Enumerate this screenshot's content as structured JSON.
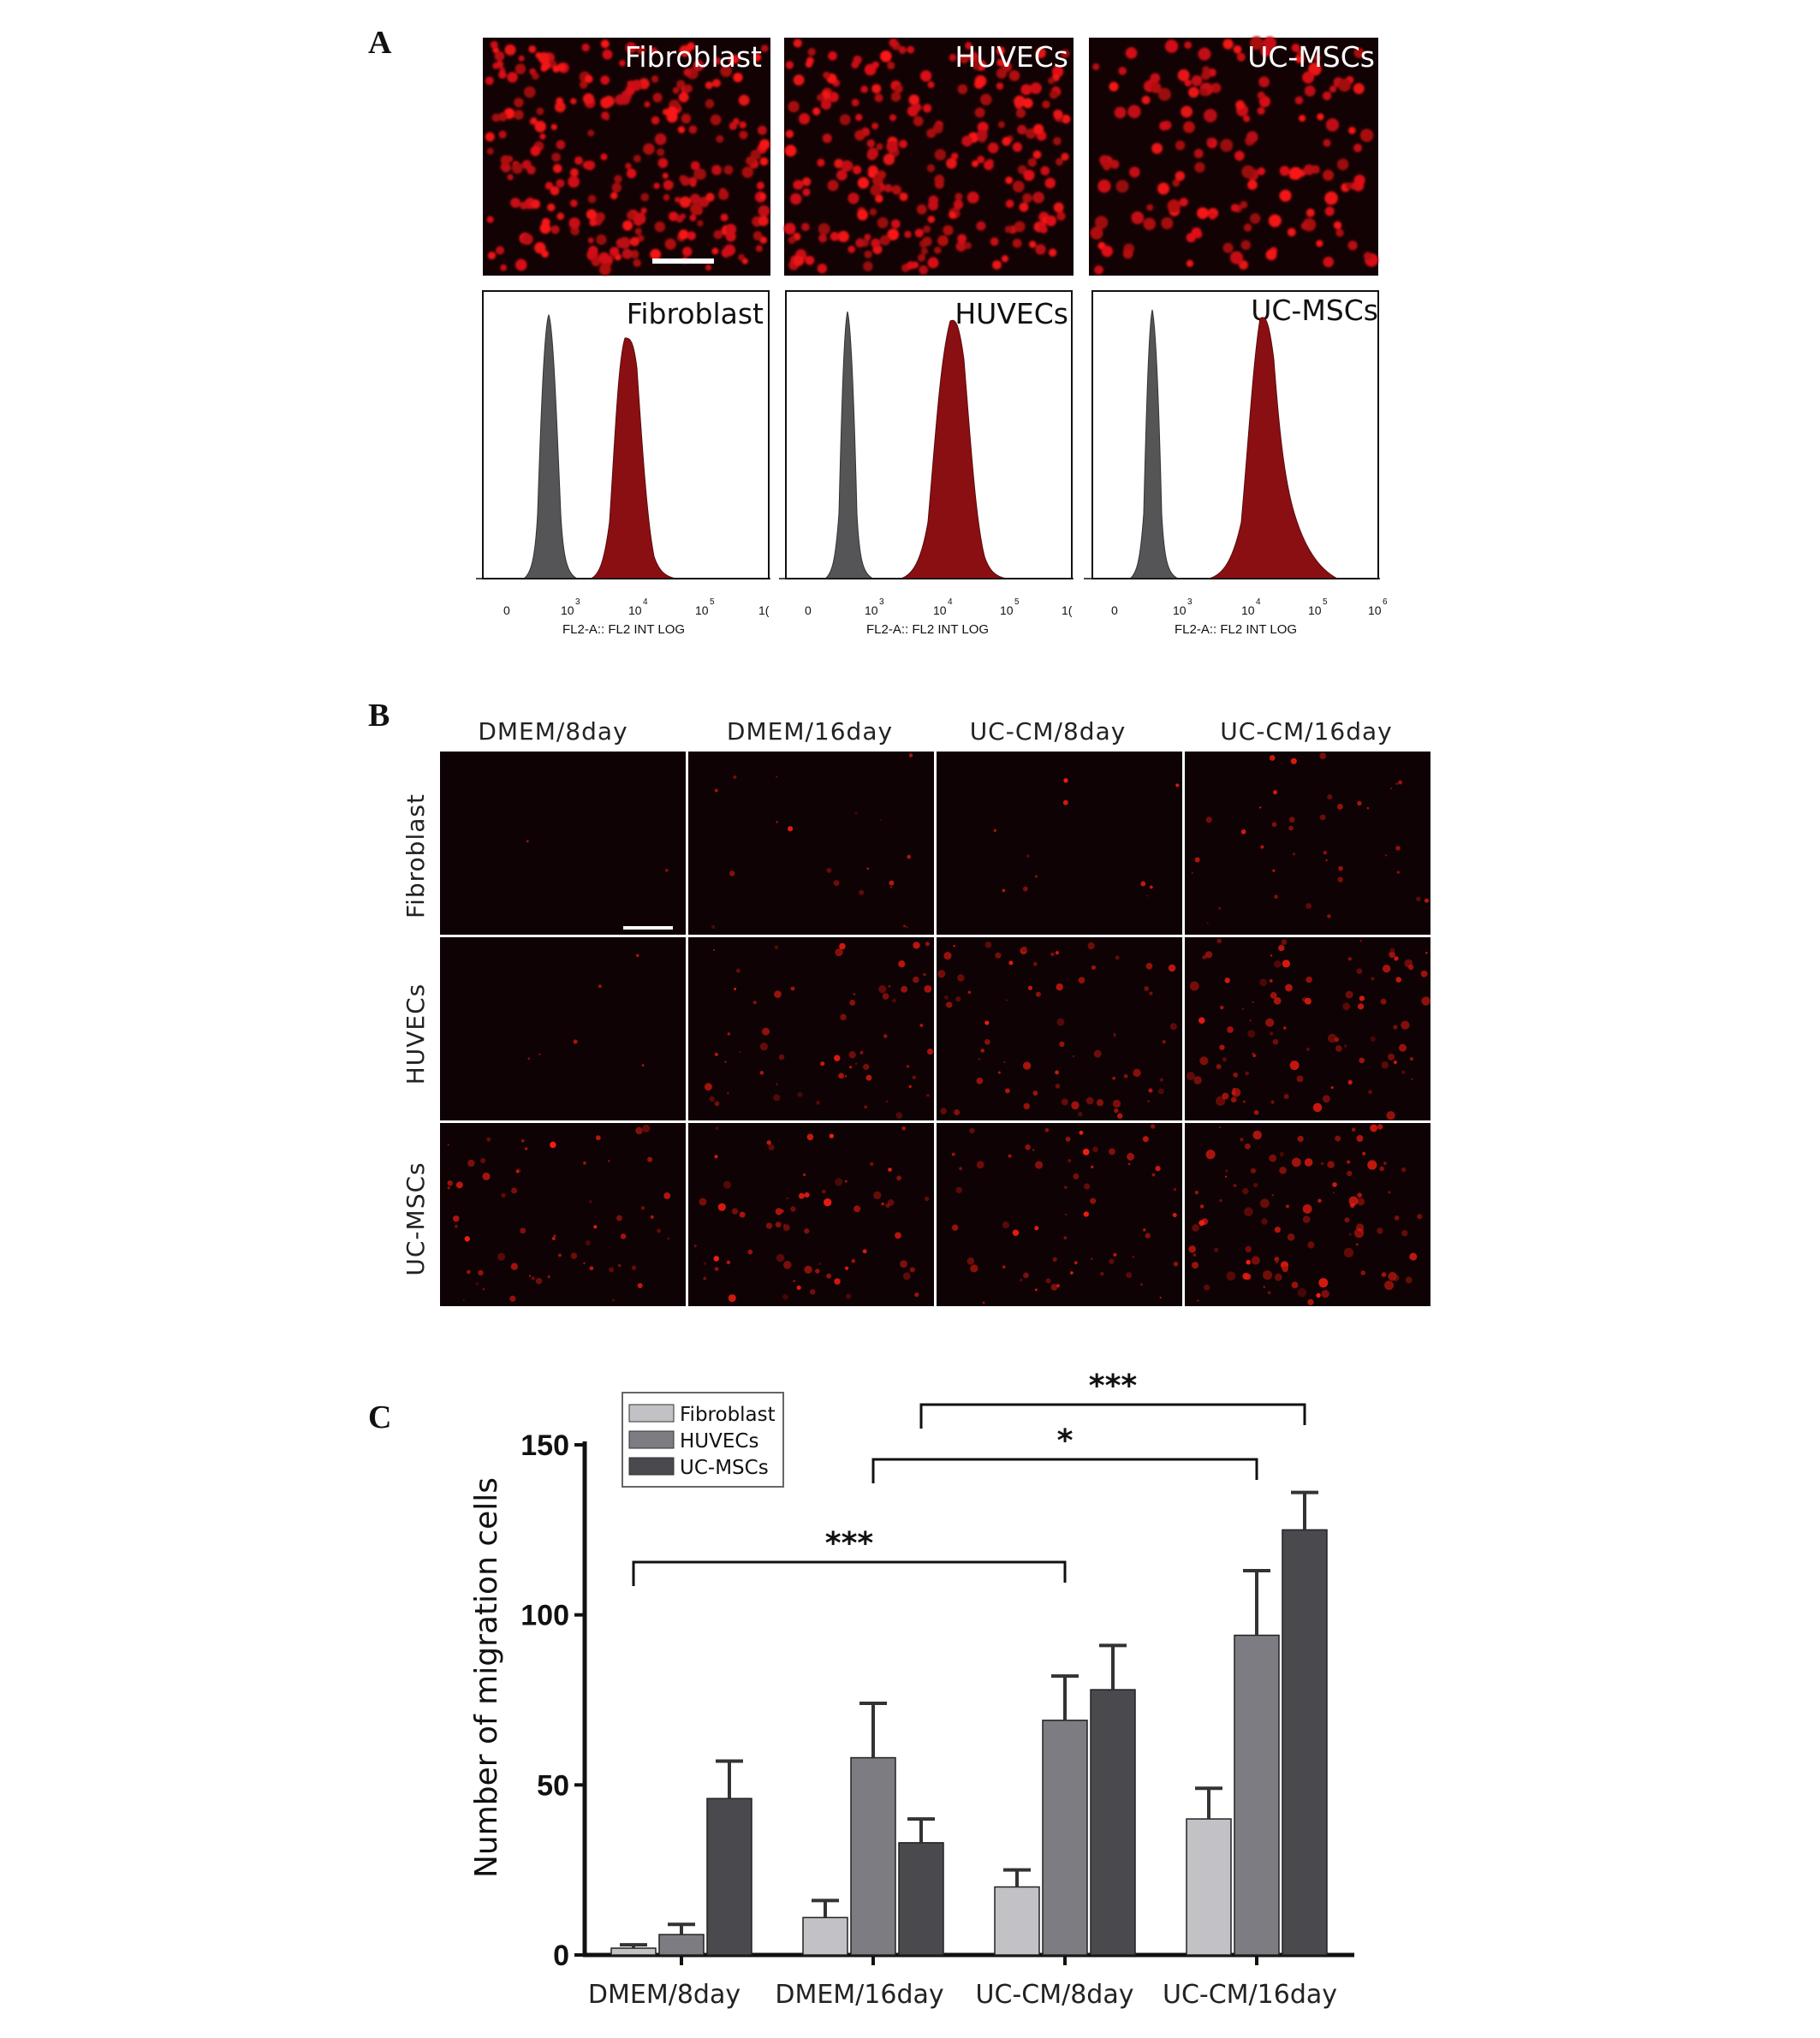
{
  "panels": {
    "a": {
      "letter": "A",
      "images": [
        {
          "label": "Fibroblast"
        },
        {
          "label": "HUVECs"
        },
        {
          "label": "UC-MSCs"
        }
      ],
      "histograms": [
        {
          "label": "Fibroblast",
          "ticks": [
            "0",
            "10",
            "10",
            "10",
            "1("
          ],
          "sups": [
            "3",
            "4",
            "5"
          ],
          "axis_caption": "FL2-A:: FL2 INT LOG"
        },
        {
          "label": "HUVECs",
          "ticks": [
            "0",
            "10",
            "10",
            "10",
            "1("
          ],
          "sups": [
            "3",
            "4",
            "5"
          ],
          "axis_caption": "FL2-A:: FL2 INT LOG"
        },
        {
          "label": "UC-MSCs",
          "ticks": [
            "0",
            "10",
            "10",
            "10",
            "10"
          ],
          "sups": [
            "3",
            "4",
            "5",
            "6"
          ],
          "axis_caption": "FL2-A:: FL2 INT LOG"
        }
      ]
    },
    "b": {
      "letter": "B",
      "columns": [
        "DMEM/8day",
        "DMEM/16day",
        "UC-CM/8day",
        "UC-CM/16day"
      ],
      "rows": [
        "Fibroblast",
        "HUVECs",
        "UC-MSCs"
      ],
      "intensity": [
        [
          0.02,
          0.18,
          0.1,
          0.35
        ],
        [
          0.06,
          0.55,
          0.6,
          0.85
        ],
        [
          0.55,
          0.6,
          0.55,
          0.9
        ]
      ]
    },
    "c": {
      "letter": "C"
    }
  },
  "chart_data": {
    "type": "bar",
    "title": "",
    "xlabel": "",
    "ylabel": "Number of migration cells",
    "ylim": [
      0,
      150
    ],
    "yticks": [
      "0",
      "50",
      "100",
      "150"
    ],
    "categories": [
      "DMEM/8day",
      "DMEM/16day",
      "UC-CM/8day",
      "UC-CM/16day"
    ],
    "legend_position": "top-left",
    "series": [
      {
        "name": "Fibroblast",
        "color": "#c2c2c6",
        "values": [
          2,
          11,
          20,
          40
        ],
        "errors": [
          1,
          5,
          5,
          9
        ]
      },
      {
        "name": "HUVECs",
        "color": "#7c7c82",
        "values": [
          6,
          58,
          69,
          94
        ],
        "errors": [
          3,
          16,
          13,
          19
        ]
      },
      {
        "name": "UC-MSCs",
        "color": "#4a4a4e",
        "values": [
          46,
          33,
          78,
          125
        ],
        "errors": [
          11,
          7,
          13,
          11
        ]
      }
    ],
    "significance": [
      {
        "label": "***",
        "from": [
          0,
          0
        ],
        "to": [
          2,
          1
        ]
      },
      {
        "label": "*",
        "from": [
          1,
          1
        ],
        "to": [
          3,
          1
        ]
      },
      {
        "label": "***",
        "from": [
          1,
          2
        ],
        "to": [
          3,
          2
        ]
      }
    ]
  }
}
